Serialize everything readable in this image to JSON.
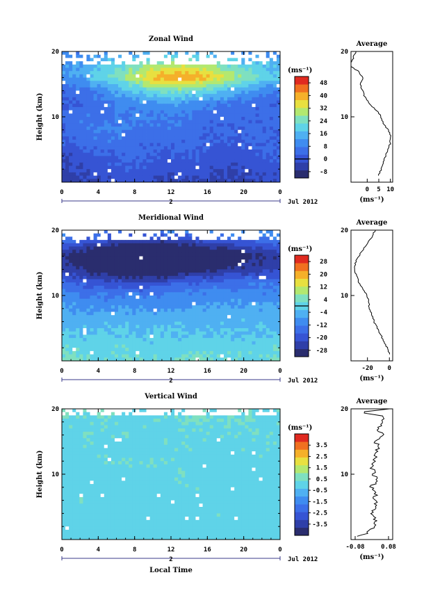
{
  "figure": {
    "background": "#ffffff",
    "colormap": [
      "#2a2d6e",
      "#2f3fa8",
      "#3654d4",
      "#3c6fe8",
      "#3f8cf0",
      "#4fb0f2",
      "#5fd3e8",
      "#7fe0c0",
      "#b3e870",
      "#e8e040",
      "#f5b02a",
      "#f07020",
      "#e02a20"
    ],
    "missing_color": "#ffffff",
    "xlabel": "Local Time",
    "date_label": "Jul 2012",
    "day_marker": "2",
    "xticks": [
      "0",
      "4",
      "8",
      "12",
      "16",
      "20",
      "0"
    ]
  },
  "chart_data": [
    {
      "type": "heatmap",
      "title": "Zonal Wind",
      "ylabel": "Height (km)",
      "ylim": [
        0,
        20
      ],
      "yticks": [
        "20",
        "10"
      ],
      "xlim": [
        0,
        24
      ],
      "colorbar": {
        "unit": "(ms⁻¹)",
        "ticks": [
          "48",
          "40",
          "32",
          "24",
          "16",
          "8",
          "0",
          "-8"
        ],
        "range": [
          -12,
          52
        ],
        "zero_line": true
      },
      "field": {
        "rows": [
          20,
          18,
          16,
          14,
          12,
          10,
          8,
          6,
          4,
          2,
          0
        ],
        "values": [
          [
            8,
            8,
            10,
            10,
            12,
            12,
            14,
            14,
            12,
            12,
            10,
            10
          ],
          [
            12,
            14,
            18,
            22,
            26,
            30,
            30,
            28,
            24,
            20,
            18,
            16
          ],
          [
            10,
            14,
            20,
            26,
            34,
            40,
            42,
            40,
            34,
            28,
            22,
            18
          ],
          [
            4,
            6,
            10,
            14,
            20,
            24,
            24,
            22,
            18,
            14,
            10,
            8
          ],
          [
            2,
            4,
            6,
            8,
            10,
            12,
            12,
            10,
            8,
            6,
            4,
            4
          ],
          [
            4,
            6,
            6,
            8,
            8,
            8,
            6,
            6,
            4,
            4,
            4,
            4
          ],
          [
            4,
            6,
            8,
            8,
            6,
            6,
            6,
            4,
            4,
            4,
            4,
            4
          ],
          [
            2,
            4,
            6,
            6,
            4,
            4,
            4,
            4,
            2,
            2,
            4,
            4
          ],
          [
            -2,
            0,
            2,
            4,
            4,
            2,
            2,
            2,
            0,
            0,
            2,
            2
          ],
          [
            -4,
            -2,
            0,
            2,
            2,
            0,
            0,
            0,
            -2,
            -2,
            0,
            0
          ],
          [
            -6,
            -4,
            -2,
            0,
            0,
            -2,
            -2,
            -2,
            -4,
            -4,
            -2,
            -2
          ]
        ],
        "missing_above_km": 18.2
      },
      "profile": {
        "title": "Average",
        "xlabel": "(ms⁻¹)",
        "xlim": [
          -7,
          11
        ],
        "xticks": [
          "0",
          "5",
          "10"
        ],
        "xtick_values": [
          0,
          5,
          10
        ],
        "yticks": [
          "20",
          "10"
        ],
        "heights": [
          1,
          2,
          3,
          4,
          5,
          6,
          7,
          8,
          9,
          10,
          11,
          12,
          13,
          14,
          15,
          16,
          17,
          18,
          19,
          20
        ],
        "values": [
          5,
          6,
          7,
          8,
          9,
          10,
          10,
          9,
          7,
          6,
          4,
          1,
          -1,
          -2,
          -3,
          -2,
          -4,
          -8,
          -6,
          -5
        ]
      }
    },
    {
      "type": "heatmap",
      "title": "Meridional Wind",
      "ylabel": "Height (km)",
      "ylim": [
        0,
        20
      ],
      "yticks": [
        "20",
        "10"
      ],
      "xlim": [
        0,
        24
      ],
      "colorbar": {
        "unit": "(ms⁻¹)",
        "ticks": [
          "28",
          "20",
          "12",
          "4",
          "-4",
          "-12",
          "-20",
          "-28"
        ],
        "range": [
          -32,
          32
        ],
        "zero_line": true
      },
      "field": {
        "rows": [
          20,
          18,
          16,
          14,
          12,
          10,
          8,
          6,
          4,
          2,
          0
        ],
        "values": [
          [
            -8,
            -10,
            -12,
            -12,
            -12,
            -10,
            -10,
            -10,
            -8,
            -8,
            -8,
            -8
          ],
          [
            -16,
            -20,
            -24,
            -26,
            -28,
            -28,
            -26,
            -24,
            -22,
            -20,
            -18,
            -16
          ],
          [
            -28,
            -32,
            -36,
            -40,
            -44,
            -46,
            -44,
            -40,
            -36,
            -32,
            -28,
            -26
          ],
          [
            -24,
            -28,
            -32,
            -34,
            -36,
            -36,
            -34,
            -30,
            -28,
            -26,
            -24,
            -22
          ],
          [
            -16,
            -18,
            -20,
            -22,
            -22,
            -20,
            -18,
            -16,
            -16,
            -14,
            -14,
            -14
          ],
          [
            -10,
            -12,
            -12,
            -12,
            -12,
            -12,
            -10,
            -10,
            -10,
            -10,
            -10,
            -10
          ],
          [
            -6,
            -8,
            -8,
            -8,
            -8,
            -8,
            -8,
            -6,
            -6,
            -6,
            -6,
            -6
          ],
          [
            -4,
            -4,
            -4,
            -4,
            -4,
            -4,
            -4,
            -4,
            -4,
            -4,
            -4,
            -4
          ],
          [
            -2,
            -2,
            -2,
            -2,
            -2,
            -2,
            -2,
            -2,
            -2,
            -2,
            -2,
            -2
          ],
          [
            2,
            0,
            0,
            2,
            0,
            0,
            0,
            2,
            0,
            0,
            0,
            2
          ],
          [
            4,
            4,
            2,
            4,
            2,
            2,
            2,
            4,
            2,
            2,
            2,
            4
          ]
        ],
        "missing_above_km": 18.5
      },
      "profile": {
        "title": "Average",
        "xlabel": "(ms⁻¹)",
        "xlim": [
          -35,
          3
        ],
        "xticks": [
          "-20",
          "0"
        ],
        "xtick_values": [
          -20,
          0
        ],
        "yticks": [
          "20",
          "10"
        ],
        "heights": [
          1,
          2,
          3,
          4,
          5,
          6,
          7,
          8,
          9,
          10,
          11,
          12,
          13,
          14,
          15,
          16,
          17,
          18,
          19,
          20
        ],
        "values": [
          0,
          -2,
          -5,
          -8,
          -11,
          -14,
          -16,
          -18,
          -19,
          -20,
          -24,
          -28,
          -30,
          -32,
          -31,
          -28,
          -24,
          -20,
          -16,
          -13
        ]
      }
    },
    {
      "type": "heatmap",
      "title": "Vertical Wind",
      "ylabel": "Height (km)",
      "ylim": [
        0,
        20
      ],
      "yticks": [
        "20",
        "10"
      ],
      "xlim": [
        0,
        24
      ],
      "colorbar": {
        "unit": "(ms⁻¹)",
        "ticks": [
          "3.5",
          "2.5",
          "1.5",
          "0.5",
          "-0.5",
          "-1.5",
          "-2.5",
          "-3.5"
        ],
        "range": [
          -4.5,
          4.5
        ],
        "zero_line": false
      },
      "field": {
        "rows": [
          20,
          18,
          16,
          14,
          12,
          10,
          8,
          6,
          4,
          2,
          0
        ],
        "values": [
          [
            0.3,
            0.2,
            0.4,
            0.2,
            0.1,
            0.3,
            0.2,
            0.4,
            0.3,
            0.5,
            0.2,
            0.3
          ],
          [
            0.2,
            0.1,
            0.3,
            0.1,
            0.2,
            0.2,
            0.1,
            0.3,
            0.2,
            0.3,
            0.1,
            0.2
          ],
          [
            0.1,
            0.2,
            0.1,
            0.2,
            0.1,
            0.1,
            0.2,
            0.1,
            0.2,
            0.1,
            0.2,
            0.1
          ],
          [
            0.0,
            0.1,
            0.2,
            0.1,
            0.0,
            0.1,
            0.2,
            0.1,
            0.0,
            0.1,
            0.2,
            0.1
          ],
          [
            0.1,
            0.0,
            0.1,
            0.2,
            0.1,
            0.3,
            0.1,
            0.0,
            0.1,
            0.0,
            0.1,
            0.0
          ],
          [
            0.0,
            0.1,
            0.0,
            0.1,
            0.0,
            0.1,
            0.2,
            0.1,
            0.0,
            0.1,
            0.0,
            0.1
          ],
          [
            0.1,
            0.0,
            0.1,
            0.0,
            0.1,
            0.0,
            0.1,
            0.2,
            0.1,
            0.0,
            0.1,
            0.0
          ],
          [
            0.0,
            0.1,
            0.0,
            0.1,
            0.0,
            0.1,
            0.0,
            0.1,
            0.0,
            0.1,
            0.0,
            0.1
          ],
          [
            0.1,
            0.0,
            0.1,
            0.0,
            0.1,
            0.0,
            0.1,
            0.0,
            0.1,
            0.0,
            0.1,
            0.0
          ],
          [
            0.0,
            0.1,
            0.0,
            0.1,
            0.0,
            0.1,
            0.0,
            0.1,
            0.0,
            0.1,
            0.0,
            0.1
          ],
          [
            0.1,
            0.1,
            0.0,
            0.0,
            0.1,
            0.0,
            0.0,
            0.1,
            0.1,
            0.0,
            0.1,
            0.0
          ]
        ],
        "missing_above_km": 18.8
      },
      "profile": {
        "title": "Average",
        "xlabel": "(ms⁻¹)",
        "xlim": [
          -0.1,
          0.1
        ],
        "xticks": [
          "-0.08",
          "0.08"
        ],
        "xtick_values": [
          -0.08,
          0.08
        ],
        "yticks": [
          "20",
          "10"
        ],
        "heights": [
          0.5,
          1,
          2,
          3,
          4,
          5,
          6,
          7,
          8,
          9,
          10,
          11,
          12,
          13,
          14,
          15,
          16,
          17,
          18,
          19,
          19.5,
          20
        ],
        "values": [
          -0.08,
          -0.02,
          0.01,
          0.02,
          0.0,
          0.03,
          0.01,
          0.02,
          0.0,
          0.02,
          0.01,
          0.0,
          0.02,
          0.01,
          0.03,
          0.02,
          0.05,
          0.03,
          0.06,
          0.04,
          -0.06,
          0.08
        ]
      }
    }
  ]
}
